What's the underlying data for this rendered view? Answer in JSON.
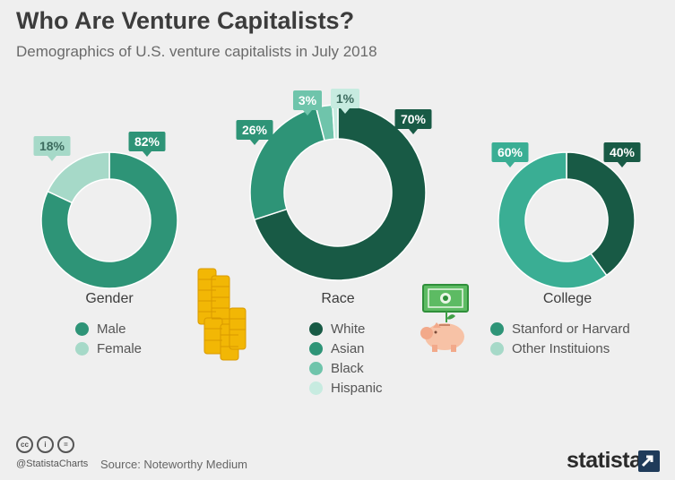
{
  "header": {
    "title": "Who Are Venture Capitalists?",
    "subtitle": "Demographics of U.S. venture capitalists in July 2018"
  },
  "chart_data": [
    {
      "type": "pie",
      "title": "Gender",
      "categories": [
        "Male",
        "Female"
      ],
      "values": [
        82,
        18
      ],
      "labels": [
        "82%",
        "18%"
      ],
      "colors": [
        "#2e9477",
        "#a6d9c8"
      ]
    },
    {
      "type": "pie",
      "title": "Race",
      "categories": [
        "White",
        "Asian",
        "Black",
        "Hispanic"
      ],
      "values": [
        70,
        26,
        3,
        1
      ],
      "labels": [
        "70%",
        "26%",
        "3%",
        "1%"
      ],
      "colors": [
        "#185a45",
        "#2e9477",
        "#6fc4ab",
        "#c7ebe0"
      ]
    },
    {
      "type": "pie",
      "title": "College",
      "categories": [
        "Stanford or Harvard",
        "Other Instituions"
      ],
      "values": [
        40,
        60
      ],
      "labels": [
        "40%",
        "60%"
      ],
      "colors": [
        "#185a45",
        "#3aae94"
      ]
    }
  ],
  "legends": [
    [
      {
        "label": "Male",
        "color": "#2e9477"
      },
      {
        "label": "Female",
        "color": "#a6d9c8"
      }
    ],
    [
      {
        "label": "White",
        "color": "#185a45"
      },
      {
        "label": "Asian",
        "color": "#2e9477"
      },
      {
        "label": "Black",
        "color": "#6fc4ab"
      },
      {
        "label": "Hispanic",
        "color": "#c7ebe0"
      }
    ],
    [
      {
        "label": "Stanford or Harvard",
        "color": "#2e9477"
      },
      {
        "label": "Other Instituions",
        "color": "#a6d9c8"
      }
    ]
  ],
  "footer": {
    "license_icons": [
      "cc-icon",
      "by-icon",
      "nd-icon"
    ],
    "handle": "@StatistaCharts",
    "source": "Source: Noteworthy Medium",
    "brand": "statista"
  }
}
